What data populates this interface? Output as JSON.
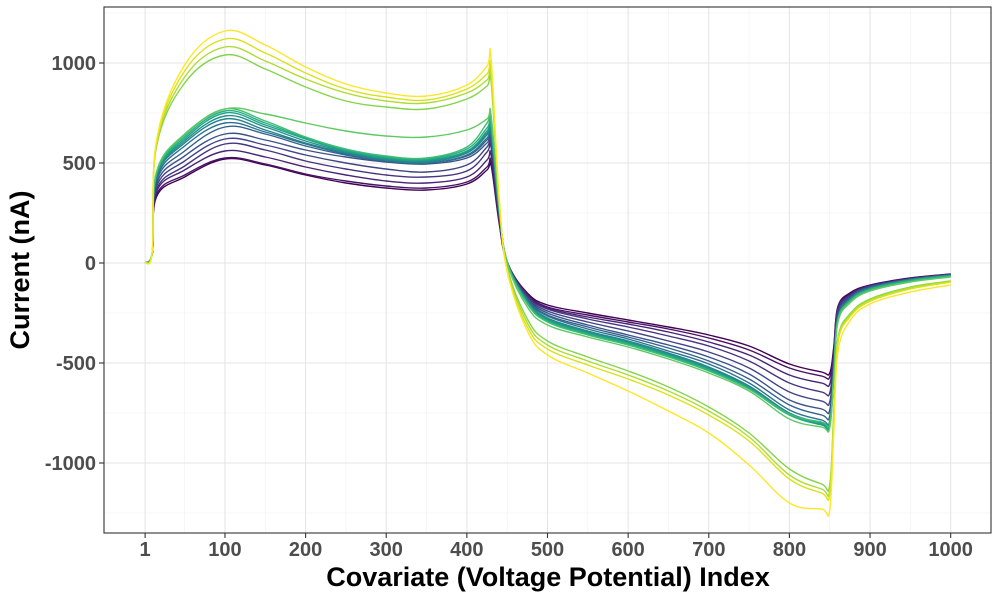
{
  "chart_data": {
    "type": "line",
    "title": "",
    "xlabel": "Covariate (Voltage Potential) Index",
    "ylabel": "Current (nA)",
    "xlim": [
      -50,
      1050
    ],
    "ylim": [
      -1350,
      1280
    ],
    "x_ticks": [
      1,
      100,
      200,
      300,
      400,
      500,
      600,
      700,
      800,
      900,
      1000
    ],
    "x_tick_labels": [
      "1",
      "100",
      "200",
      "300",
      "400",
      "500",
      "600",
      "700",
      "800",
      "900",
      "1000"
    ],
    "y_ticks": [
      -1000,
      -500,
      0,
      500,
      1000
    ],
    "y_tick_labels": [
      "-1000",
      "-500",
      "0",
      "500",
      "1000"
    ],
    "grid": true,
    "legend": "none",
    "x": [
      1,
      10,
      15,
      50,
      100,
      150,
      200,
      250,
      300,
      350,
      400,
      425,
      430,
      440,
      450,
      475,
      500,
      550,
      600,
      650,
      700,
      750,
      800,
      840,
      850,
      855,
      860,
      875,
      900,
      950,
      1000
    ],
    "series": [
      {
        "color": "#440154",
        "values": [
          0,
          50,
          330,
          430,
          520,
          490,
          440,
          400,
          375,
          365,
          395,
          465,
          490,
          200,
          0,
          -150,
          -210,
          -250,
          -285,
          -320,
          -360,
          -415,
          -505,
          -545,
          -550,
          -420,
          -220,
          -150,
          -110,
          -75,
          -55
        ]
      },
      {
        "color": "#471365",
        "values": [
          0,
          50,
          340,
          440,
          525,
          495,
          445,
          410,
          385,
          375,
          405,
          480,
          505,
          210,
          5,
          -155,
          -220,
          -260,
          -295,
          -330,
          -375,
          -435,
          -525,
          -565,
          -570,
          -430,
          -225,
          -155,
          -112,
          -76,
          -56
        ]
      },
      {
        "color": "#482475",
        "values": [
          0,
          52,
          355,
          465,
          560,
          530,
          480,
          440,
          410,
          400,
          430,
          515,
          540,
          220,
          5,
          -160,
          -225,
          -270,
          -305,
          -345,
          -395,
          -460,
          -560,
          -600,
          -605,
          -450,
          -230,
          -158,
          -114,
          -78,
          -57
        ]
      },
      {
        "color": "#463480",
        "values": [
          0,
          52,
          365,
          485,
          595,
          565,
          510,
          470,
          440,
          430,
          460,
          555,
          580,
          230,
          5,
          -165,
          -230,
          -280,
          -320,
          -365,
          -415,
          -490,
          -600,
          -645,
          -650,
          -470,
          -240,
          -162,
          -116,
          -79,
          -58
        ]
      },
      {
        "color": "#414487",
        "values": [
          0,
          54,
          380,
          510,
          620,
          590,
          540,
          500,
          470,
          455,
          490,
          580,
          605,
          240,
          5,
          -170,
          -240,
          -295,
          -340,
          -390,
          -445,
          -525,
          -645,
          -690,
          -695,
          -490,
          -250,
          -168,
          -118,
          -80,
          -59
        ]
      },
      {
        "color": "#3b528b",
        "values": [
          0,
          55,
          395,
          535,
          645,
          615,
          565,
          530,
          505,
          495,
          525,
          600,
          620,
          245,
          5,
          -175,
          -250,
          -310,
          -360,
          -410,
          -470,
          -555,
          -685,
          -730,
          -735,
          -510,
          -260,
          -172,
          -120,
          -81,
          -59
        ]
      },
      {
        "color": "#33638d",
        "values": [
          0,
          56,
          410,
          560,
          680,
          645,
          585,
          540,
          510,
          500,
          535,
          615,
          635,
          250,
          5,
          -180,
          -260,
          -320,
          -370,
          -425,
          -490,
          -580,
          -710,
          -760,
          -765,
          -530,
          -270,
          -176,
          -122,
          -82,
          -60
        ]
      },
      {
        "color": "#2c728e",
        "values": [
          0,
          57,
          420,
          585,
          700,
          655,
          595,
          545,
          510,
          500,
          540,
          625,
          645,
          255,
          5,
          -185,
          -265,
          -330,
          -380,
          -440,
          -505,
          -600,
          -735,
          -785,
          -790,
          -545,
          -275,
          -180,
          -124,
          -83,
          -60
        ]
      },
      {
        "color": "#26828e",
        "values": [
          0,
          58,
          430,
          600,
          720,
          665,
          600,
          550,
          515,
          505,
          550,
          640,
          660,
          260,
          5,
          -190,
          -275,
          -340,
          -390,
          -450,
          -520,
          -615,
          -750,
          -800,
          -805,
          -555,
          -280,
          -182,
          -126,
          -84,
          -61
        ]
      },
      {
        "color": "#21918c",
        "values": [
          0,
          58,
          435,
          610,
          735,
          680,
          610,
          555,
          520,
          510,
          555,
          650,
          670,
          265,
          5,
          -195,
          -280,
          -345,
          -395,
          -455,
          -525,
          -620,
          -755,
          -805,
          -810,
          -560,
          -285,
          -185,
          -128,
          -85,
          -62
        ]
      },
      {
        "color": "#1fa088",
        "values": [
          0,
          59,
          440,
          620,
          750,
          690,
          620,
          560,
          525,
          515,
          560,
          660,
          680,
          270,
          5,
          -195,
          -285,
          -350,
          -400,
          -460,
          -530,
          -625,
          -760,
          -810,
          -815,
          -565,
          -290,
          -188,
          -130,
          -86,
          -63
        ]
      },
      {
        "color": "#28ae80",
        "values": [
          0,
          59,
          445,
          630,
          760,
          700,
          625,
          565,
          530,
          520,
          570,
          675,
          695,
          275,
          5,
          -200,
          -290,
          -355,
          -405,
          -465,
          -535,
          -630,
          -760,
          -800,
          -805,
          -560,
          -290,
          -190,
          -132,
          -88,
          -64
        ]
      },
      {
        "color": "#3fbc73",
        "values": [
          0,
          60,
          450,
          640,
          770,
          710,
          630,
          570,
          535,
          525,
          580,
          700,
          720,
          280,
          0,
          -205,
          -295,
          -360,
          -410,
          -470,
          -540,
          -630,
          -755,
          -795,
          -800,
          -555,
          -285,
          -192,
          -135,
          -92,
          -67
        ]
      },
      {
        "color": "#5ec962",
        "values": [
          0,
          60,
          455,
          645,
          770,
          745,
          700,
          660,
          635,
          630,
          665,
          720,
          740,
          285,
          0,
          -220,
          -310,
          -370,
          -420,
          -480,
          -550,
          -640,
          -780,
          -820,
          -825,
          -575,
          -300,
          -200,
          -140,
          -95,
          -70
        ]
      },
      {
        "color": "#84d44b",
        "values": [
          0,
          62,
          580,
          900,
          1040,
          970,
          880,
          810,
          780,
          770,
          820,
          885,
          910,
          310,
          -20,
          -280,
          -390,
          -470,
          -540,
          -620,
          -720,
          -850,
          -1030,
          -1105,
          -1110,
          -740,
          -380,
          -255,
          -180,
          -120,
          -90
        ]
      },
      {
        "color": "#addc30",
        "values": [
          0,
          62,
          590,
          930,
          1080,
          1010,
          920,
          850,
          810,
          800,
          850,
          915,
          940,
          310,
          -30,
          -300,
          -410,
          -490,
          -560,
          -640,
          -740,
          -870,
          -1060,
          -1130,
          -1135,
          -760,
          -390,
          -262,
          -185,
          -124,
          -92
        ]
      },
      {
        "color": "#d8e219",
        "values": [
          0,
          63,
          600,
          960,
          1120,
          1050,
          950,
          870,
          830,
          815,
          870,
          945,
          965,
          320,
          -40,
          -320,
          -430,
          -510,
          -580,
          -660,
          -760,
          -890,
          -1080,
          -1150,
          -1155,
          -780,
          -400,
          -270,
          -192,
          -130,
          -96
        ]
      },
      {
        "color": "#fde725",
        "values": [
          0,
          64,
          610,
          990,
          1160,
          1090,
          980,
          895,
          850,
          835,
          890,
          985,
          1025,
          330,
          -40,
          -340,
          -460,
          -550,
          -640,
          -740,
          -850,
          -1010,
          -1200,
          -1230,
          -1235,
          -850,
          -450,
          -290,
          -205,
          -145,
          -110
        ]
      }
    ]
  }
}
